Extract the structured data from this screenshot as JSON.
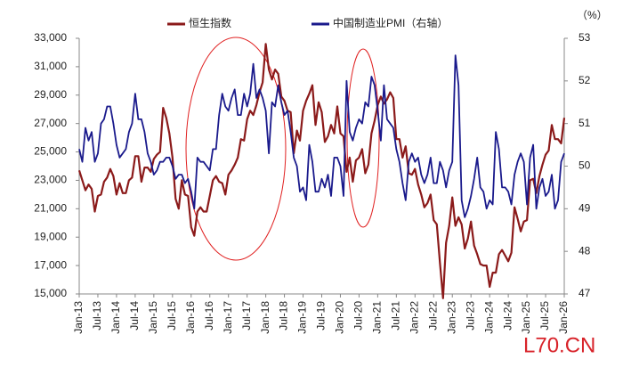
{
  "chart_data": {
    "type": "line",
    "unit_label": "（%）",
    "watermark": "L70.CN",
    "x": [
      "Jan-13",
      null,
      null,
      null,
      null,
      null,
      "Jul-13",
      null,
      null,
      null,
      null,
      null,
      "Jan-14",
      null,
      null,
      null,
      null,
      null,
      "Jul-14",
      null,
      null,
      null,
      null,
      null,
      "Jan-15",
      null,
      null,
      null,
      null,
      null,
      "Jul-15",
      null,
      null,
      null,
      null,
      null,
      "Jan-16",
      null,
      null,
      null,
      null,
      null,
      "Jul-16",
      null,
      null,
      null,
      null,
      null,
      "Jan-17",
      null,
      null,
      null,
      null,
      null,
      "Jul-17",
      null,
      null,
      null,
      null,
      null,
      "Jan-18",
      null,
      null,
      null,
      null,
      null,
      "Jul-18",
      null,
      null,
      null,
      null,
      null,
      "Jan-19",
      null,
      null,
      null,
      null,
      null,
      "Jul-19",
      null,
      null,
      null,
      null,
      null,
      "Jan-20",
      null,
      null,
      null,
      null,
      null,
      "Jul-20",
      null,
      null,
      null,
      null,
      null,
      "Jan-21",
      null,
      null,
      null,
      null,
      null,
      "Jul-21",
      null,
      null,
      null,
      null,
      null,
      "Jan-22",
      null,
      null,
      null,
      null,
      null,
      "Jul-22",
      null,
      null,
      null,
      null,
      null,
      "Jan-23",
      null,
      null,
      null,
      null,
      null,
      "Jul-23",
      null,
      null,
      null,
      null,
      null,
      "Jan-24",
      null,
      null,
      null,
      null,
      null,
      "Jul-24",
      null,
      null,
      null,
      null,
      null,
      "Jan-25",
      null,
      null,
      null,
      null,
      null,
      "Jul-25",
      null,
      null,
      null,
      null,
      null,
      "Jan-26"
    ],
    "series": [
      {
        "name": "恒生指数",
        "color": "#8b1a1a",
        "axis": "y",
        "values": [
          23700,
          23000,
          22300,
          22700,
          22400,
          20800,
          21900,
          22000,
          22900,
          23200,
          23800,
          23300,
          22000,
          22800,
          22100,
          22100,
          23000,
          23200,
          24700,
          24700,
          22900,
          23900,
          23900,
          23600,
          24500,
          24800,
          25000,
          28100,
          27400,
          26300,
          24600,
          21700,
          21000,
          23000,
          22000,
          21900,
          19700,
          19100,
          20800,
          21100,
          20800,
          20800,
          21900,
          23000,
          23300,
          22900,
          22800,
          22000,
          23400,
          23700,
          24100,
          24600,
          25900,
          25800,
          27300,
          27900,
          27600,
          28300,
          29200,
          29900,
          32600,
          30800,
          30100,
          30800,
          30500,
          28900,
          28600,
          27900,
          27800,
          24900,
          26500,
          25800,
          27900,
          28600,
          29100,
          29700,
          26900,
          28500,
          27800,
          25700,
          26100,
          26900,
          26300,
          28200,
          26300,
          26100,
          23600,
          24600,
          22900,
          24400,
          24600,
          25200,
          23500,
          24100,
          26300,
          27200,
          28300,
          28900,
          28400,
          28700,
          29200,
          28800,
          25900,
          25900,
          24600,
          25400,
          23500,
          23400,
          23800,
          22700,
          22000,
          21100,
          21400,
          22000,
          20200,
          19900,
          17200,
          14700,
          18600,
          19800,
          21800,
          19800,
          20400,
          19900,
          18200,
          18900,
          20100,
          18400,
          17800,
          17100,
          17000,
          17000,
          15500,
          16500,
          16500,
          17800,
          18100,
          17700,
          17300,
          17900,
          21100,
          20300,
          19400,
          20100,
          20200,
          23000,
          23100,
          22100,
          23300,
          24100,
          24800,
          25100,
          26900,
          25900,
          25900,
          25600,
          27400
        ]
      },
      {
        "name": "中国制造业PMI（右轴）",
        "color": "#1a1a8c",
        "axis": "y2",
        "values": [
          50.4,
          50.1,
          50.9,
          50.6,
          50.8,
          50.1,
          50.3,
          51.0,
          51.1,
          51.4,
          51.4,
          51.0,
          50.5,
          50.2,
          50.3,
          50.4,
          50.8,
          51.0,
          51.7,
          51.1,
          51.1,
          50.8,
          50.3,
          50.1,
          49.8,
          49.9,
          50.1,
          50.1,
          50.2,
          50.2,
          50.0,
          49.7,
          49.8,
          49.8,
          49.6,
          49.7,
          49.4,
          49.0,
          50.2,
          50.1,
          50.1,
          50.0,
          49.9,
          50.4,
          50.4,
          51.2,
          51.7,
          51.4,
          51.3,
          51.6,
          51.8,
          51.2,
          51.2,
          51.7,
          51.4,
          51.7,
          52.4,
          51.6,
          51.8,
          51.6,
          51.3,
          50.3,
          51.5,
          51.4,
          51.9,
          51.5,
          51.2,
          51.3,
          50.8,
          50.2,
          50.0,
          49.4,
          49.5,
          49.2,
          50.5,
          50.1,
          49.4,
          49.4,
          49.7,
          49.5,
          49.8,
          49.3,
          50.2,
          50.2,
          50.0,
          49.3,
          52.0,
          50.8,
          50.6,
          50.9,
          51.1,
          51.0,
          51.5,
          51.4,
          52.1,
          51.9,
          51.3,
          50.6,
          51.9,
          51.1,
          51.0,
          50.9,
          50.4,
          50.1,
          49.6,
          49.2,
          50.1,
          50.3,
          50.1,
          50.2,
          49.8,
          49.6,
          49.8,
          50.2,
          49.6,
          49.6,
          50.1,
          49.9,
          49.5,
          49.9,
          50.1,
          52.6,
          51.9,
          49.2,
          48.8,
          49.0,
          49.3,
          49.7,
          50.2,
          49.5,
          49.4,
          49.0,
          49.2,
          49.1,
          50.8,
          50.4,
          49.5,
          49.5,
          49.4,
          49.1,
          49.8,
          50.1,
          50.3,
          50.1,
          49.1,
          50.2,
          50.5,
          49.0,
          49.5,
          49.7,
          49.3,
          49.4,
          49.8,
          49.0,
          49.2,
          50.1,
          50.3
        ]
      }
    ],
    "ylim": [
      15000,
      33000
    ],
    "yticks": [
      {
        "value": 15000,
        "label": "15,000"
      },
      {
        "value": 17000,
        "label": "17,000"
      },
      {
        "value": 19000,
        "label": "19,000"
      },
      {
        "value": 21000,
        "label": "21,000"
      },
      {
        "value": 23000,
        "label": "23,000"
      },
      {
        "value": 25000,
        "label": "25,000"
      },
      {
        "value": 27000,
        "label": "27,000"
      },
      {
        "value": 29000,
        "label": "29,000"
      },
      {
        "value": 31000,
        "label": "31,000"
      },
      {
        "value": 33000,
        "label": "33,000"
      }
    ],
    "y2lim": [
      47,
      53
    ],
    "y2ticks": [
      47,
      48,
      49,
      50,
      51,
      52,
      53
    ],
    "grid": false
  }
}
